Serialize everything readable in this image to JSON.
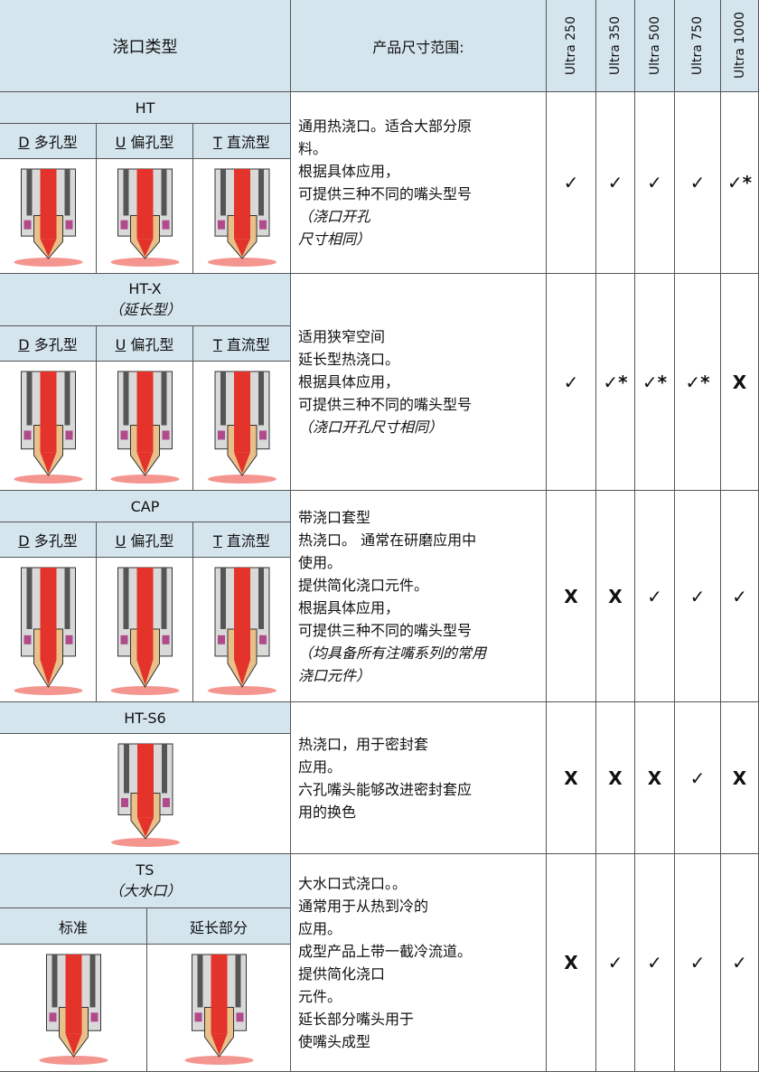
{
  "header": {
    "type_col": "浇口类型",
    "desc_col": "产品尺寸范围:",
    "sizes": [
      "Ultra 250",
      "Ultra 350",
      "Ultra 500",
      "Ultra 750",
      "Ultra 1000"
    ]
  },
  "rows": [
    {
      "name": "HT",
      "subtypes": [
        {
          "key": "D",
          "label": "多孔型"
        },
        {
          "key": "U",
          "label": "偏孔型"
        },
        {
          "key": "T",
          "label": "直流型"
        }
      ],
      "description": [
        "通用热浇口。适合大部分原",
        "料。",
        "根据具体应用，",
        "可提供三种不同的嘴头型号"
      ],
      "note": [
        "（浇口开孔",
        "尺寸相同）"
      ],
      "availability": [
        "✓",
        "✓",
        "✓",
        "✓",
        "✓*"
      ]
    },
    {
      "name": "HT-X",
      "subtitle": "（延长型）",
      "subtypes": [
        {
          "key": "D",
          "label": "多孔型"
        },
        {
          "key": "U",
          "label": "偏孔型"
        },
        {
          "key": "T",
          "label": "直流型"
        }
      ],
      "description": [
        "适用狭窄空间",
        "延长型热浇口。",
        "根据具体应用，",
        "可提供三种不同的嘴头型号"
      ],
      "note": [
        "（浇口开孔尺寸相同）"
      ],
      "availability": [
        "✓",
        "✓*",
        "✓*",
        "✓*",
        "X"
      ]
    },
    {
      "name": "CAP",
      "subtypes": [
        {
          "key": "D",
          "label": "多孔型"
        },
        {
          "key": "U",
          "label": "偏孔型"
        },
        {
          "key": "T",
          "label": "直流型"
        }
      ],
      "description": [
        "带浇口套型",
        "热浇口。 通常在研磨应用中",
        "使用。",
        "提供简化浇口元件。",
        "根据具体应用，",
        "可提供三种不同的嘴头型号"
      ],
      "note": [
        "（均具备所有注嘴系列的常用",
        "浇口元件）"
      ],
      "availability": [
        "X",
        "X",
        "✓",
        "✓",
        "✓"
      ]
    },
    {
      "name": "HT-S6",
      "description": [
        "热浇口，用于密封套",
        "应用。",
        "六孔嘴头能够改进密封套应",
        "用的换色"
      ],
      "availability": [
        "X",
        "X",
        "X",
        "✓",
        "X"
      ]
    },
    {
      "name": "TS",
      "subtitle": "（大水口）",
      "subtypes": [
        {
          "label": "标准"
        },
        {
          "label": "延长部分"
        }
      ],
      "description": [
        "大水口式浇口。。",
        "通常用于从热到冷的",
        "应用。",
        "成型产品上带一截冷流道。",
        "提供简化浇口",
        "元件。",
        "延长部分嘴头用于",
        "使嘴头成型"
      ],
      "availability": [
        "X",
        "✓",
        "✓",
        "✓",
        "✓"
      ]
    }
  ]
}
